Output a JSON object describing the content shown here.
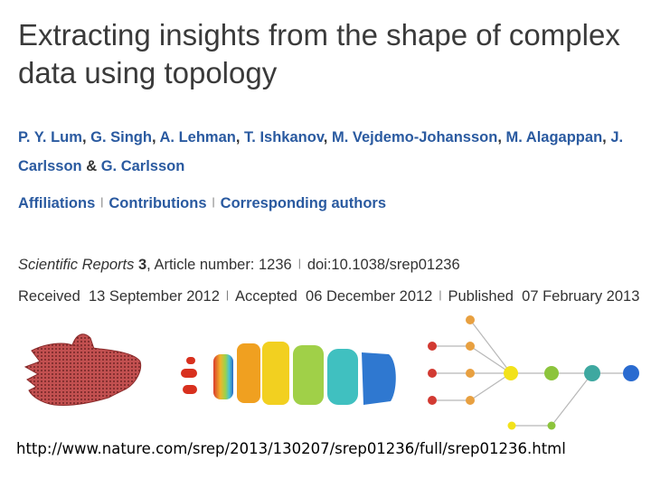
{
  "article": {
    "title": "Extracting insights from the shape of complex data using topology",
    "authors": [
      {
        "name": "P. Y. Lum",
        "sep": ", "
      },
      {
        "name": "G. Singh",
        "sep": ", "
      },
      {
        "name": "A. Lehman",
        "sep": ", "
      },
      {
        "name": "T. Ishkanov",
        "sep": ", "
      },
      {
        "name": "M. Vejdemo-Johansson",
        "sep": ", "
      },
      {
        "name": "M. Alagappan",
        "sep": ", "
      },
      {
        "name": "J. Carlsson",
        "sep": " & "
      },
      {
        "name": "G. Carlsson",
        "sep": ""
      }
    ],
    "links": {
      "affiliations": "Affiliations",
      "contributions": "Contributions",
      "corresponding": "Corresponding authors",
      "separator": "|"
    },
    "citation": {
      "journal": "Scientific Reports",
      "volume": "3",
      "article_label": "Article number: 1236",
      "doi": "doi:10.1038/srep01236"
    },
    "dates": {
      "received_label": "Received",
      "received": "13 September 2012",
      "accepted_label": "Accepted",
      "accepted": "06 December 2012",
      "published_label": "Published",
      "published": "07 February 2013"
    }
  },
  "url_caption": "http://www.nature.com/srep/2013/130207/srep01236/full/srep01236.html",
  "figure": {
    "colors": {
      "hand": "#b04040",
      "node_red": "#d23a32",
      "node_orange": "#e8a040",
      "node_yellow": "#f2e21a",
      "node_green": "#8cc43c",
      "node_teal": "#3ea8a0",
      "node_blue": "#2a6bd0",
      "edge": "#b8b8b8"
    },
    "icons": [
      "hand-point-cloud",
      "color-sliced-hand",
      "topological-network-graph"
    ]
  }
}
